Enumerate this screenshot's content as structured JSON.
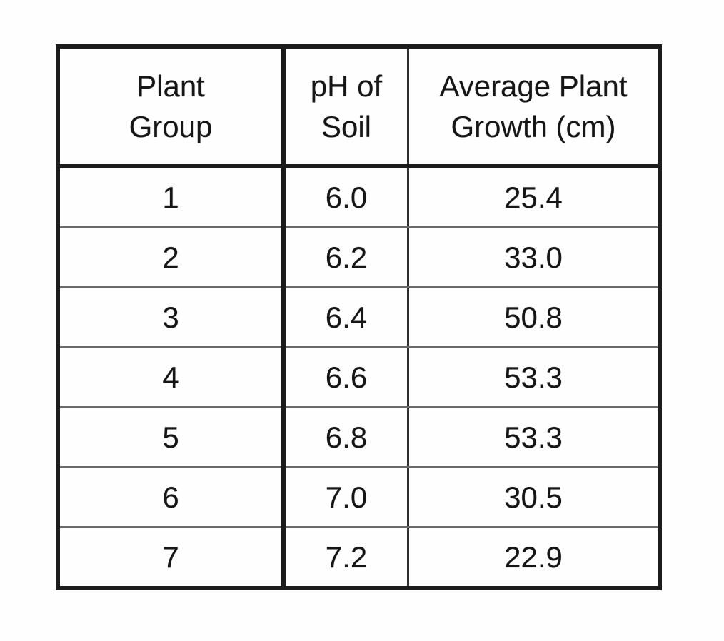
{
  "chart_data": {
    "type": "table",
    "title": "",
    "columns": [
      "Plant Group",
      "pH of Soil",
      "Average Plant Growth (cm)"
    ],
    "rows": [
      [
        1,
        6.0,
        25.4
      ],
      [
        2,
        6.2,
        33.0
      ],
      [
        3,
        6.4,
        50.8
      ],
      [
        4,
        6.6,
        53.3
      ],
      [
        5,
        6.8,
        53.3
      ],
      [
        6,
        7.0,
        30.5
      ],
      [
        7,
        7.2,
        22.9
      ]
    ]
  },
  "table": {
    "headers": {
      "plant_group": "Plant\nGroup",
      "ph_of_soil": "pH of\nSoil",
      "avg_growth": "Average Plant\nGrowth (cm)"
    },
    "rows": [
      [
        "1",
        "6.0",
        "25.4"
      ],
      [
        "2",
        "6.2",
        "33.0"
      ],
      [
        "3",
        "6.4",
        "50.8"
      ],
      [
        "4",
        "6.6",
        "53.3"
      ],
      [
        "5",
        "6.8",
        "53.3"
      ],
      [
        "6",
        "7.0",
        "30.5"
      ],
      [
        "7",
        "7.2",
        "22.9"
      ]
    ]
  },
  "colors": {
    "outer_border": "#1c1c1c",
    "inner_row_divider": "#6a6a6a",
    "text": "#161616",
    "background": "#fefefe"
  }
}
